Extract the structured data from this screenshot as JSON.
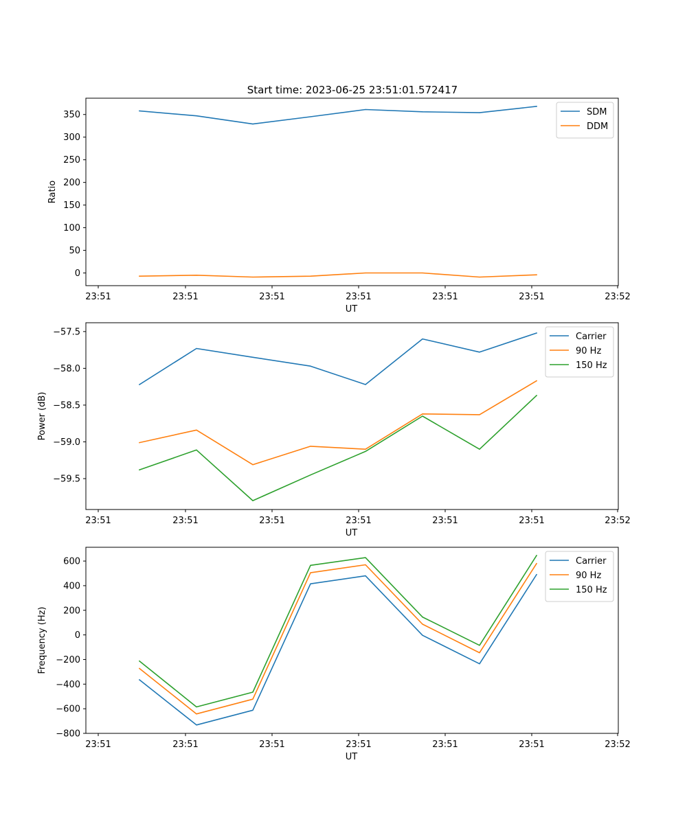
{
  "figure": {
    "title": "Start time: 2023-06-25 23:51:01.572417"
  },
  "chart_data": [
    {
      "type": "line",
      "xlabel": "UT",
      "ylabel": "Ratio",
      "x_ticks": [
        "23:51",
        "23:51",
        "23:51",
        "23:51",
        "23:51",
        "23:51",
        "23:52"
      ],
      "yticks": [
        0,
        50,
        100,
        150,
        200,
        250,
        300,
        350
      ],
      "ylim": [
        -28,
        386
      ],
      "grid": false,
      "legend": "top-right",
      "series": [
        {
          "name": "SDM",
          "color": "#1f77b4",
          "values": [
            358,
            347,
            329,
            345,
            361,
            356,
            354,
            368
          ]
        },
        {
          "name": "DDM",
          "color": "#ff7f0e",
          "values": [
            -7,
            -5,
            -9,
            -7,
            0,
            0,
            -9,
            -4
          ]
        }
      ]
    },
    {
      "type": "line",
      "xlabel": "UT",
      "ylabel": "Power (dB)",
      "x_ticks": [
        "23:51",
        "23:51",
        "23:51",
        "23:51",
        "23:51",
        "23:51",
        "23:52"
      ],
      "yticks": [
        -59.5,
        -59.0,
        -58.5,
        -58.0,
        -57.5
      ],
      "ytick_labels": [
        "−59.5",
        "−59.0",
        "−58.5",
        "−58.0",
        "−57.5"
      ],
      "ylim": [
        -59.92,
        -57.38
      ],
      "grid": false,
      "legend": "top-right",
      "series": [
        {
          "name": "Carrier",
          "color": "#1f77b4",
          "values": [
            -58.22,
            -57.73,
            -57.85,
            -57.97,
            -58.22,
            -57.6,
            -57.78,
            -57.52
          ]
        },
        {
          "name": "90 Hz",
          "color": "#ff7f0e",
          "values": [
            -59.01,
            -58.84,
            -59.31,
            -59.06,
            -59.1,
            -58.62,
            -58.63,
            -58.17
          ]
        },
        {
          "name": "150 Hz",
          "color": "#2ca02c",
          "values": [
            -59.38,
            -59.11,
            -59.8,
            -59.45,
            -59.13,
            -58.65,
            -59.1,
            -58.37
          ]
        }
      ]
    },
    {
      "type": "line",
      "xlabel": "UT",
      "ylabel": "Frequency (Hz)",
      "x_ticks": [
        "23:51",
        "23:51",
        "23:51",
        "23:51",
        "23:51",
        "23:51",
        "23:52"
      ],
      "yticks": [
        -800,
        -600,
        -400,
        -200,
        0,
        200,
        400,
        600
      ],
      "ytick_labels": [
        "−800",
        "−600",
        "−400",
        "−200",
        "0",
        "200",
        "400",
        "600"
      ],
      "ylim": [
        -800,
        712
      ],
      "grid": false,
      "legend": "top-right",
      "series": [
        {
          "name": "Carrier",
          "color": "#1f77b4",
          "values": [
            -365,
            -732,
            -612,
            415,
            480,
            -3,
            -235,
            490
          ]
        },
        {
          "name": "90 Hz",
          "color": "#ff7f0e",
          "values": [
            -273,
            -642,
            -522,
            505,
            570,
            87,
            -145,
            580
          ]
        },
        {
          "name": "150 Hz",
          "color": "#2ca02c",
          "values": [
            -213,
            -585,
            -465,
            565,
            628,
            145,
            -85,
            645
          ]
        }
      ]
    }
  ]
}
